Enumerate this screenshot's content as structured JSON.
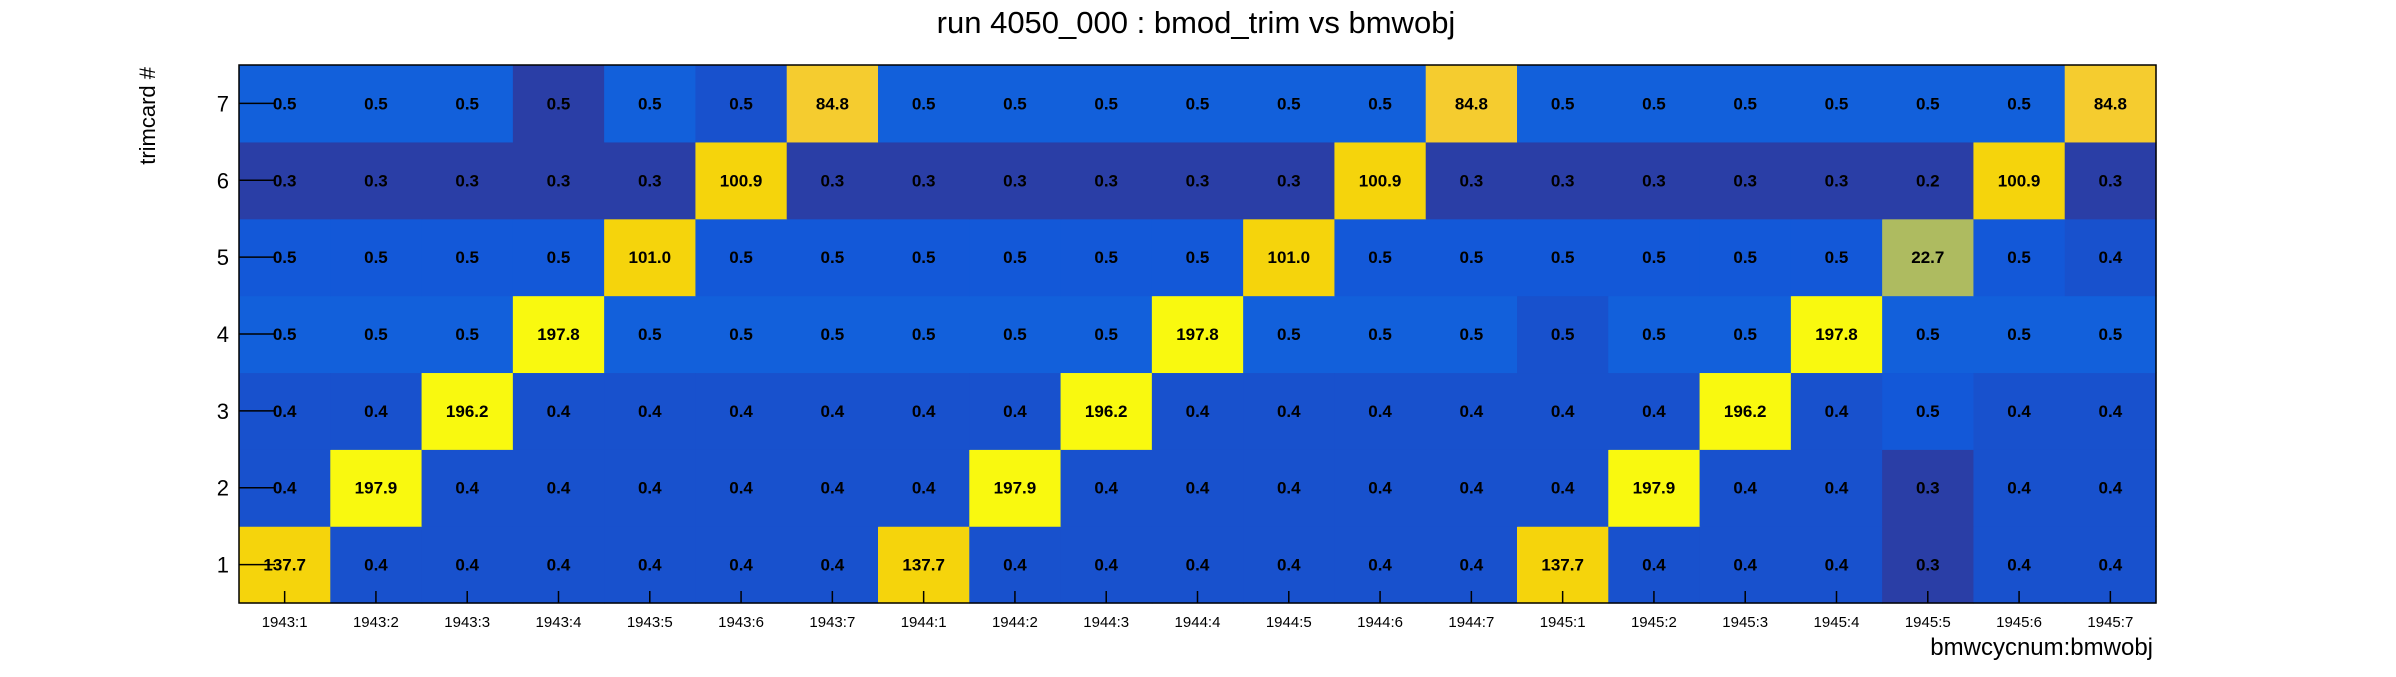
{
  "chart_data": {
    "type": "heatmap",
    "title": "run 4050_000 : bmod_trim vs bmwobj",
    "xlabel": "bmwcycnum:bmwobj",
    "ylabel": "trimcard #",
    "x_categories": [
      "1943:1",
      "1943:2",
      "1943:3",
      "1943:4",
      "1943:5",
      "1943:6",
      "1943:7",
      "1944:1",
      "1944:2",
      "1944:3",
      "1944:4",
      "1944:5",
      "1944:6",
      "1944:7",
      "1945:1",
      "1945:2",
      "1945:3",
      "1945:4",
      "1945:5",
      "1945:6",
      "1945:7"
    ],
    "y_categories": [
      "1",
      "2",
      "3",
      "4",
      "5",
      "6",
      "7"
    ],
    "values": [
      [
        137.7,
        0.4,
        0.4,
        0.4,
        0.4,
        0.4,
        0.4,
        137.7,
        0.4,
        0.4,
        0.4,
        0.4,
        0.4,
        0.4,
        137.7,
        0.4,
        0.4,
        0.4,
        0.3,
        0.4,
        0.4
      ],
      [
        0.4,
        197.9,
        0.4,
        0.4,
        0.4,
        0.4,
        0.4,
        0.4,
        197.9,
        0.4,
        0.4,
        0.4,
        0.4,
        0.4,
        0.4,
        197.9,
        0.4,
        0.4,
        0.3,
        0.4,
        0.4
      ],
      [
        0.4,
        0.4,
        196.2,
        0.4,
        0.4,
        0.4,
        0.4,
        0.4,
        0.4,
        196.2,
        0.4,
        0.4,
        0.4,
        0.4,
        0.4,
        0.4,
        196.2,
        0.4,
        0.5,
        0.4,
        0.4
      ],
      [
        0.5,
        0.5,
        0.5,
        197.8,
        0.5,
        0.5,
        0.5,
        0.5,
        0.5,
        0.5,
        197.8,
        0.5,
        0.5,
        0.5,
        0.5,
        0.5,
        0.5,
        197.8,
        0.5,
        0.5,
        0.5
      ],
      [
        0.5,
        0.5,
        0.5,
        0.5,
        101.0,
        0.5,
        0.5,
        0.5,
        0.5,
        0.5,
        0.5,
        101.0,
        0.5,
        0.5,
        0.5,
        0.5,
        0.5,
        0.5,
        22.7,
        0.5,
        0.4
      ],
      [
        0.3,
        0.3,
        0.3,
        0.3,
        0.3,
        100.9,
        0.3,
        0.3,
        0.3,
        0.3,
        0.3,
        0.3,
        100.9,
        0.3,
        0.3,
        0.3,
        0.3,
        0.3,
        0.2,
        100.9,
        0.3
      ],
      [
        0.5,
        0.5,
        0.5,
        0.5,
        0.5,
        0.5,
        84.8,
        0.5,
        0.5,
        0.5,
        0.5,
        0.5,
        0.5,
        84.8,
        0.5,
        0.5,
        0.5,
        0.5,
        0.5,
        0.5,
        84.8
      ]
    ],
    "cell_colors": [
      [
        "#f5d40c",
        "#1851cd",
        "#1851cd",
        "#1851cd",
        "#1851cd",
        "#1851cd",
        "#1851cd",
        "#f5d40c",
        "#1851cd",
        "#1851cd",
        "#1851cd",
        "#1851cd",
        "#1851cd",
        "#1851cd",
        "#f5d40c",
        "#1851cd",
        "#1851cd",
        "#1851cd",
        "#2a3ea6",
        "#1851cd",
        "#1851cd"
      ],
      [
        "#1851cd",
        "#f9f90f",
        "#1851cd",
        "#1851cd",
        "#1851cd",
        "#1851cd",
        "#1851cd",
        "#1851cd",
        "#f9f90f",
        "#1851cd",
        "#1851cd",
        "#1851cd",
        "#1851cd",
        "#1851cd",
        "#1851cd",
        "#f9f90f",
        "#1851cd",
        "#1851cd",
        "#2a3ea6",
        "#1851cd",
        "#1851cd"
      ],
      [
        "#1851cd",
        "#1851cd",
        "#f9f90f",
        "#1851cd",
        "#1851cd",
        "#1851cd",
        "#1851cd",
        "#1851cd",
        "#1851cd",
        "#f9f90f",
        "#1851cd",
        "#1851cd",
        "#1851cd",
        "#1851cd",
        "#1851cd",
        "#1851cd",
        "#f9f90f",
        "#1851cd",
        "#1358d8",
        "#1851cd",
        "#1851cd"
      ],
      [
        "#1260db",
        "#1260db",
        "#1260db",
        "#f9f90f",
        "#1260db",
        "#1260db",
        "#1260db",
        "#1260db",
        "#1260db",
        "#1260db",
        "#f9f90f",
        "#1260db",
        "#1260db",
        "#1260db",
        "#1851cd",
        "#1260db",
        "#1260db",
        "#f9f90f",
        "#1260db",
        "#1260db",
        "#1260db"
      ],
      [
        "#1358d8",
        "#1358d8",
        "#1358d8",
        "#1358d8",
        "#f5d40c",
        "#1358d8",
        "#1358d8",
        "#1358d8",
        "#1358d8",
        "#1358d8",
        "#1358d8",
        "#f5d40c",
        "#1358d8",
        "#1358d8",
        "#1358d8",
        "#1358d8",
        "#1358d8",
        "#1358d8",
        "#aebb60",
        "#1358d8",
        "#1851cd"
      ],
      [
        "#2a3ea6",
        "#2a3ea6",
        "#2a3ea6",
        "#2a3ea6",
        "#2a3ea6",
        "#f5d40c",
        "#2a3ea6",
        "#2a3ea6",
        "#2a3ea6",
        "#2a3ea6",
        "#2a3ea6",
        "#2a3ea6",
        "#f5d40c",
        "#2a3ea6",
        "#2a3ea6",
        "#2a3ea6",
        "#2a3ea6",
        "#2a3ea6",
        "#2a3ea6",
        "#f5d40c",
        "#2a3ea6"
      ],
      [
        "#1260db",
        "#1260db",
        "#1260db",
        "#2a3ea6",
        "#1260db",
        "#1851cd",
        "#f5cc2f",
        "#1260db",
        "#1260db",
        "#1260db",
        "#1260db",
        "#1260db",
        "#1260db",
        "#f5cc2f",
        "#1260db",
        "#1260db",
        "#1260db",
        "#1260db",
        "#1260db",
        "#1260db",
        "#f5cc2f"
      ]
    ],
    "legend": "none",
    "grid": false
  }
}
